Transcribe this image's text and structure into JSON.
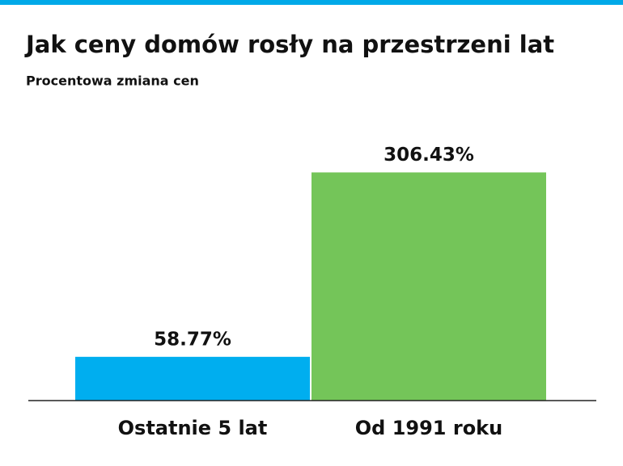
{
  "chart_data": {
    "type": "bar",
    "title": "Jak ceny domów rosły na przestrzeni lat",
    "subtitle": "Procentowa zmiana cen",
    "categories": [
      "Ostatnie 5 lat",
      "Od 1991 roku"
    ],
    "values": [
      58.77,
      306.43
    ],
    "value_labels": [
      "58.77%",
      "306.43%"
    ],
    "colors": [
      "#00aeef",
      "#74c559"
    ]
  }
}
